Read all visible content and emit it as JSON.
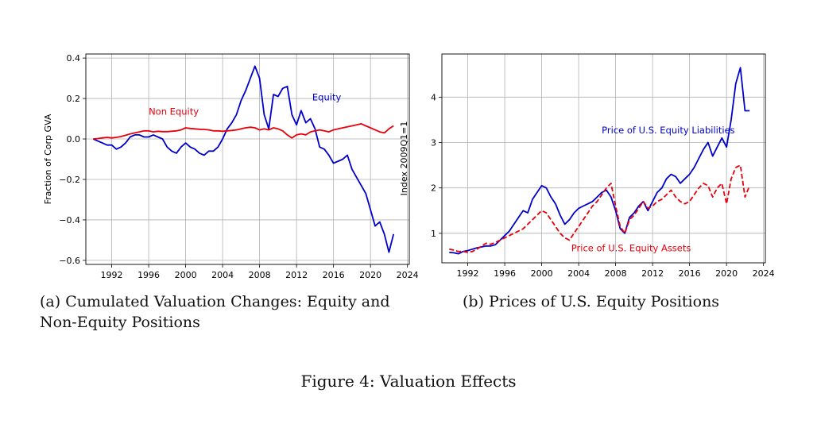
{
  "figure": {
    "title": "Figure 4: Valuation Effects"
  },
  "captions": {
    "a": "(a) Cumulated Valuation Changes: Equity and Non-Equity Positions",
    "b": "(b) Prices of U.S. Equity Positions"
  },
  "chart_data": [
    {
      "type": "line",
      "ylabel": "Fraction of Corp GVA",
      "xlim": [
        1989.2,
        2024.2
      ],
      "ylim": [
        -0.62,
        0.42
      ],
      "xticks": [
        1992,
        1996,
        2000,
        2004,
        2008,
        2012,
        2016,
        2020,
        2024
      ],
      "xtick_labels": [
        "1992",
        "1996",
        "2000",
        "2004",
        "2008",
        "2012",
        "2016",
        "2020",
        "2024"
      ],
      "yticks": [
        -0.6,
        -0.4,
        -0.2,
        0.0,
        0.2,
        0.4
      ],
      "ytick_labels": [
        "−0.6",
        "−0.4",
        "−0.2",
        "0.0",
        "0.2",
        "0.4"
      ],
      "grid": true,
      "annotations": [
        {
          "text": "Non Equity",
          "x": 1996.0,
          "y": 0.12,
          "color": "#e8000b"
        },
        {
          "text": "Equity",
          "x": 2013.7,
          "y": 0.19,
          "color": "#0000cc"
        }
      ],
      "series": [
        {
          "name": "Equity",
          "color": "#0000cc",
          "dash": "solid",
          "x": [
            1990.0,
            1990.5,
            1991.0,
            1991.5,
            1992.0,
            1992.5,
            1993.0,
            1993.5,
            1994.0,
            1994.5,
            1995.0,
            1995.5,
            1996.0,
            1996.5,
            1997.0,
            1997.5,
            1998.0,
            1998.5,
            1999.0,
            1999.5,
            2000.0,
            2000.5,
            2001.0,
            2001.5,
            2002.0,
            2002.5,
            2003.0,
            2003.5,
            2004.0,
            2004.5,
            2005.0,
            2005.5,
            2006.0,
            2006.5,
            2007.0,
            2007.5,
            2008.0,
            2008.5,
            2009.0,
            2009.5,
            2010.0,
            2010.5,
            2011.0,
            2011.5,
            2012.0,
            2012.5,
            2013.0,
            2013.5,
            2014.0,
            2014.5,
            2015.0,
            2015.5,
            2016.0,
            2016.5,
            2017.0,
            2017.5,
            2018.0,
            2018.5,
            2019.0,
            2019.5,
            2020.0,
            2020.5,
            2021.0,
            2021.5,
            2022.0,
            2022.5
          ],
          "y": [
            0.0,
            -0.01,
            -0.02,
            -0.03,
            -0.03,
            -0.05,
            -0.04,
            -0.02,
            0.01,
            0.02,
            0.02,
            0.01,
            0.01,
            0.02,
            0.01,
            0.0,
            -0.04,
            -0.06,
            -0.07,
            -0.04,
            -0.02,
            -0.04,
            -0.05,
            -0.07,
            -0.08,
            -0.06,
            -0.06,
            -0.04,
            0.0,
            0.05,
            0.08,
            0.12,
            0.19,
            0.24,
            0.3,
            0.36,
            0.3,
            0.12,
            0.05,
            0.22,
            0.21,
            0.25,
            0.26,
            0.12,
            0.07,
            0.14,
            0.08,
            0.1,
            0.05,
            -0.04,
            -0.05,
            -0.08,
            -0.12,
            -0.11,
            -0.1,
            -0.08,
            -0.15,
            -0.19,
            -0.23,
            -0.27,
            -0.35,
            -0.43,
            -0.41,
            -0.47,
            -0.56,
            -0.47
          ]
        },
        {
          "name": "Non Equity",
          "color": "#e8000b",
          "dash": "solid",
          "x": [
            1990.0,
            1990.5,
            1991.0,
            1991.5,
            1992.0,
            1992.5,
            1993.0,
            1993.5,
            1994.0,
            1994.5,
            1995.0,
            1995.5,
            1996.0,
            1996.5,
            1997.0,
            1997.5,
            1998.0,
            1998.5,
            1999.0,
            1999.5,
            2000.0,
            2000.5,
            2001.0,
            2001.5,
            2002.0,
            2002.5,
            2003.0,
            2003.5,
            2004.0,
            2004.5,
            2005.0,
            2005.5,
            2006.0,
            2006.5,
            2007.0,
            2007.5,
            2008.0,
            2008.5,
            2009.0,
            2009.5,
            2010.0,
            2010.5,
            2011.0,
            2011.5,
            2012.0,
            2012.5,
            2013.0,
            2013.5,
            2014.0,
            2014.5,
            2015.0,
            2015.5,
            2016.0,
            2016.5,
            2017.0,
            2017.5,
            2018.0,
            2018.5,
            2019.0,
            2019.5,
            2020.0,
            2020.5,
            2021.0,
            2021.5,
            2022.0,
            2022.5
          ],
          "y": [
            0.0,
            0.002,
            0.005,
            0.008,
            0.005,
            0.008,
            0.012,
            0.018,
            0.025,
            0.03,
            0.035,
            0.04,
            0.04,
            0.035,
            0.038,
            0.036,
            0.036,
            0.038,
            0.04,
            0.045,
            0.055,
            0.052,
            0.05,
            0.048,
            0.047,
            0.045,
            0.04,
            0.04,
            0.038,
            0.04,
            0.042,
            0.045,
            0.05,
            0.055,
            0.058,
            0.055,
            0.045,
            0.05,
            0.045,
            0.055,
            0.05,
            0.04,
            0.02,
            0.005,
            0.02,
            0.025,
            0.02,
            0.035,
            0.04,
            0.045,
            0.04,
            0.035,
            0.045,
            0.05,
            0.055,
            0.06,
            0.065,
            0.07,
            0.075,
            0.065,
            0.055,
            0.045,
            0.035,
            0.03,
            0.05,
            0.065
          ]
        }
      ]
    },
    {
      "type": "line",
      "ylabel": "Index 2009Q1=1",
      "xlim": [
        1989.2,
        2024.2
      ],
      "ylim": [
        0.35,
        4.95
      ],
      "xticks": [
        1992,
        1996,
        2000,
        2004,
        2008,
        2012,
        2016,
        2020,
        2024
      ],
      "xtick_labels": [
        "1992",
        "1996",
        "2000",
        "2004",
        "2008",
        "2012",
        "2016",
        "2020",
        "2024"
      ],
      "yticks": [
        1,
        2,
        3,
        4
      ],
      "ytick_labels": [
        "1",
        "2",
        "3",
        "4"
      ],
      "grid": true,
      "annotations": [
        {
          "text": "Price of U.S. Equity Liabilities",
          "x": 2006.5,
          "y": 3.2,
          "color": "#0000cc"
        },
        {
          "text": "Price of U.S. Equity Assets",
          "x": 2003.2,
          "y": 0.6,
          "color": "#e8000b"
        }
      ],
      "series": [
        {
          "name": "Price of U.S. Equity Liabilities",
          "color": "#0000cc",
          "dash": "solid",
          "x": [
            1990.0,
            1990.5,
            1991.0,
            1991.5,
            1992.0,
            1992.5,
            1993.0,
            1993.5,
            1994.0,
            1994.5,
            1995.0,
            1995.5,
            1996.0,
            1996.5,
            1997.0,
            1997.5,
            1998.0,
            1998.5,
            1999.0,
            1999.5,
            2000.0,
            2000.5,
            2001.0,
            2001.5,
            2002.0,
            2002.5,
            2003.0,
            2003.5,
            2004.0,
            2004.5,
            2005.0,
            2005.5,
            2006.0,
            2006.5,
            2007.0,
            2007.5,
            2008.0,
            2008.5,
            2009.0,
            2009.5,
            2010.0,
            2010.5,
            2011.0,
            2011.5,
            2012.0,
            2012.5,
            2013.0,
            2013.5,
            2014.0,
            2014.5,
            2015.0,
            2015.5,
            2016.0,
            2016.5,
            2017.0,
            2017.5,
            2018.0,
            2018.5,
            2019.0,
            2019.5,
            2020.0,
            2020.5,
            2021.0,
            2021.5,
            2022.0,
            2022.5
          ],
          "y": [
            0.58,
            0.57,
            0.55,
            0.6,
            0.62,
            0.65,
            0.68,
            0.7,
            0.72,
            0.72,
            0.75,
            0.85,
            0.95,
            1.05,
            1.2,
            1.35,
            1.5,
            1.45,
            1.75,
            1.9,
            2.05,
            2.0,
            1.8,
            1.65,
            1.4,
            1.2,
            1.3,
            1.45,
            1.55,
            1.6,
            1.65,
            1.7,
            1.8,
            1.9,
            1.95,
            1.8,
            1.5,
            1.1,
            1.0,
            1.35,
            1.45,
            1.6,
            1.7,
            1.5,
            1.7,
            1.9,
            2.0,
            2.2,
            2.3,
            2.25,
            2.1,
            2.2,
            2.3,
            2.45,
            2.65,
            2.85,
            3.0,
            2.7,
            2.9,
            3.1,
            2.9,
            3.5,
            4.3,
            4.65,
            3.7,
            3.7
          ]
        },
        {
          "name": "Price of U.S. Equity Assets",
          "color": "#e8000b",
          "dash": "dashed",
          "x": [
            1990.0,
            1990.5,
            1991.0,
            1991.5,
            1992.0,
            1992.5,
            1993.0,
            1993.5,
            1994.0,
            1994.5,
            1995.0,
            1995.5,
            1996.0,
            1996.5,
            1997.0,
            1997.5,
            1998.0,
            1998.5,
            1999.0,
            1999.5,
            2000.0,
            2000.5,
            2001.0,
            2001.5,
            2002.0,
            2002.5,
            2003.0,
            2003.5,
            2004.0,
            2004.5,
            2005.0,
            2005.5,
            2006.0,
            2006.5,
            2007.0,
            2007.5,
            2008.0,
            2008.5,
            2009.0,
            2009.5,
            2010.0,
            2010.5,
            2011.0,
            2011.5,
            2012.0,
            2012.5,
            2013.0,
            2013.5,
            2014.0,
            2014.5,
            2015.0,
            2015.5,
            2016.0,
            2016.5,
            2017.0,
            2017.5,
            2018.0,
            2018.5,
            2019.0,
            2019.5,
            2020.0,
            2020.5,
            2021.0,
            2021.5,
            2022.0,
            2022.5
          ],
          "y": [
            0.65,
            0.63,
            0.6,
            0.6,
            0.58,
            0.6,
            0.65,
            0.72,
            0.78,
            0.76,
            0.8,
            0.85,
            0.9,
            0.95,
            1.0,
            1.05,
            1.1,
            1.2,
            1.3,
            1.4,
            1.5,
            1.45,
            1.3,
            1.15,
            1.0,
            0.9,
            0.85,
            1.0,
            1.15,
            1.3,
            1.45,
            1.6,
            1.7,
            1.85,
            2.0,
            2.1,
            1.6,
            1.15,
            1.0,
            1.3,
            1.4,
            1.55,
            1.7,
            1.55,
            1.6,
            1.7,
            1.75,
            1.85,
            1.95,
            1.8,
            1.7,
            1.65,
            1.7,
            1.85,
            2.0,
            2.1,
            2.05,
            1.8,
            2.0,
            2.1,
            1.65,
            2.2,
            2.45,
            2.5,
            1.8,
            2.05
          ]
        }
      ]
    }
  ]
}
